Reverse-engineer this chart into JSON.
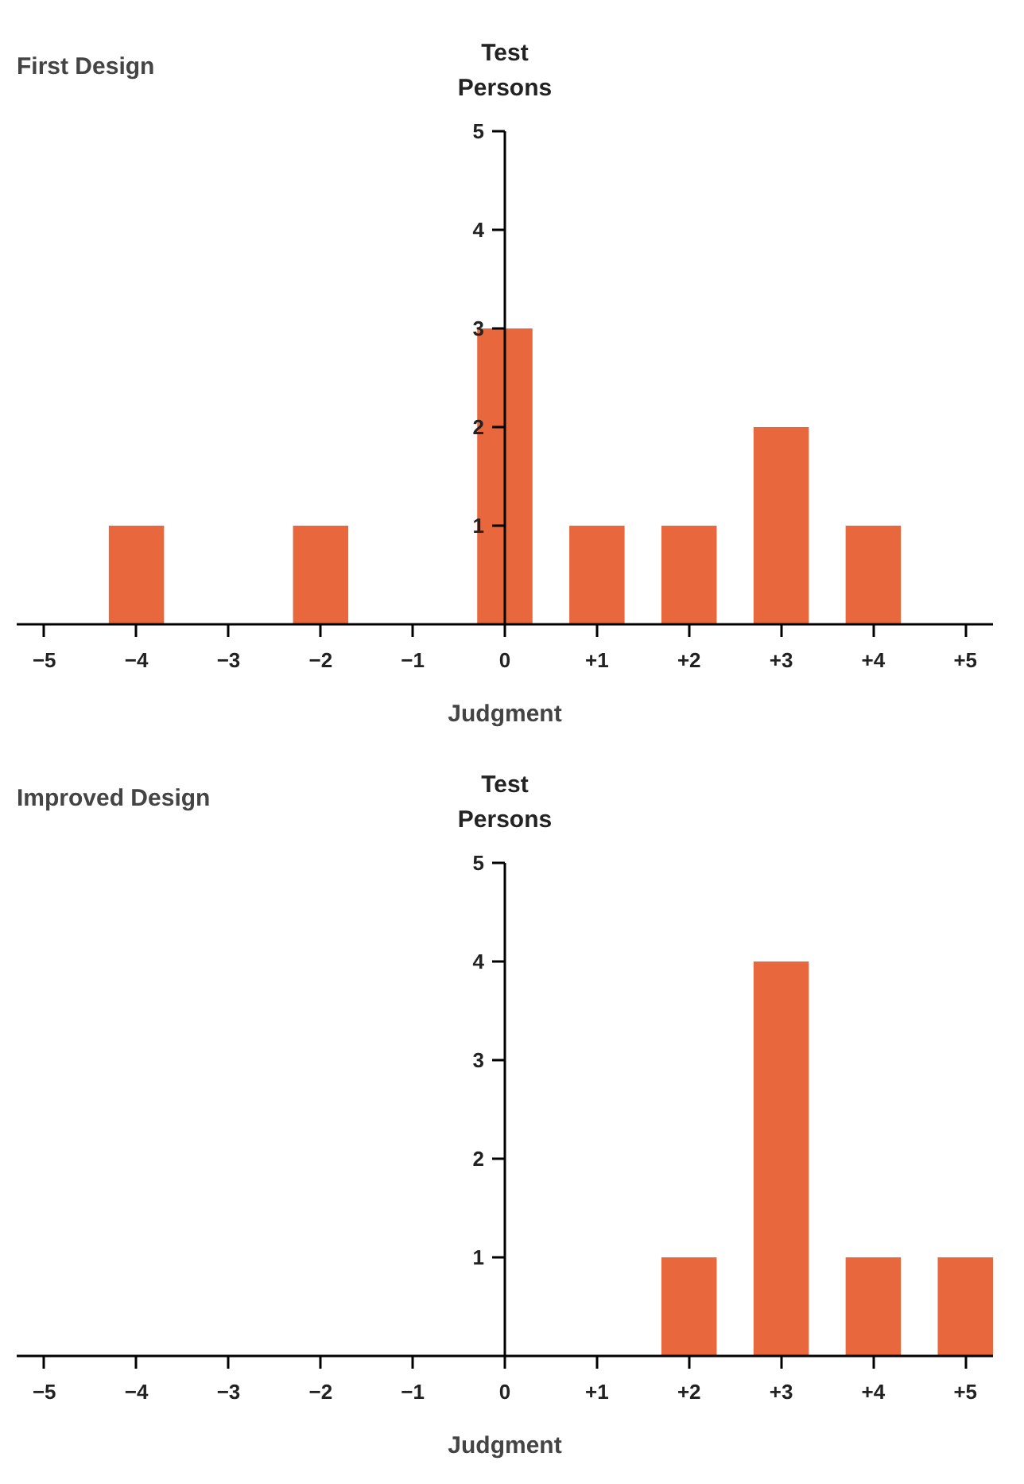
{
  "chart_data": [
    {
      "type": "bar",
      "title": "First Design",
      "xlabel": "Judgment",
      "ylabel": "Test Persons",
      "x": [
        -4,
        -2,
        0,
        1,
        2,
        3,
        4
      ],
      "values": [
        1,
        1,
        3,
        1,
        1,
        2,
        1
      ],
      "color": "#e8673d",
      "xlim": [
        -5.3,
        5.3
      ],
      "ylim": [
        0,
        5
      ],
      "xticks": [
        {
          "value": -5,
          "label": "−5"
        },
        {
          "value": -4,
          "label": "−4"
        },
        {
          "value": -3,
          "label": "−3"
        },
        {
          "value": -2,
          "label": "−2"
        },
        {
          "value": -1,
          "label": "−1"
        },
        0,
        {
          "value": 1,
          "label": "+1"
        },
        {
          "value": 2,
          "label": "+2"
        },
        {
          "value": 3,
          "label": "+3"
        },
        {
          "value": 4,
          "label": "+4"
        },
        {
          "value": 5,
          "label": "+5"
        }
      ],
      "yticks": [
        1,
        2,
        3,
        4,
        5
      ],
      "grid": false
    },
    {
      "type": "bar",
      "title": "Improved Design",
      "xlabel": "Judgment",
      "ylabel": "Test Persons",
      "x": [
        2,
        3,
        4,
        5
      ],
      "values": [
        1,
        4,
        1,
        1
      ],
      "color": "#e8673d",
      "xlim": [
        -5.3,
        5.3
      ],
      "ylim": [
        0,
        5
      ],
      "xticks": [
        {
          "value": -5,
          "label": "−5"
        },
        {
          "value": -4,
          "label": "−4"
        },
        {
          "value": -3,
          "label": "−3"
        },
        {
          "value": -2,
          "label": "−2"
        },
        {
          "value": -1,
          "label": "−1"
        },
        0,
        {
          "value": 1,
          "label": "+1"
        },
        {
          "value": 2,
          "label": "+2"
        },
        {
          "value": 3,
          "label": "+3"
        },
        {
          "value": 4,
          "label": "+4"
        },
        {
          "value": 5,
          "label": "+5"
        }
      ],
      "yticks": [
        1,
        2,
        3,
        4,
        5
      ],
      "grid": false
    }
  ]
}
